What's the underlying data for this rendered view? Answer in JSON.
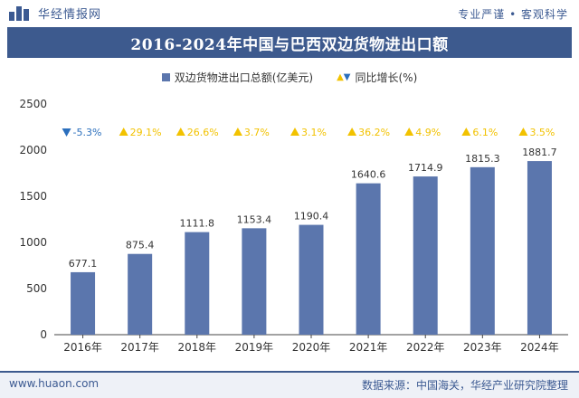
{
  "header": {
    "logo_text": "华经情报网",
    "slogan": "专业严谨 • 客观科学"
  },
  "footer": {
    "website": "www.huaon.com",
    "source": "数据来源：中国海关，华经产业研究院整理"
  },
  "colors": {
    "bar": "#5b76ad",
    "title_bg": "#3d5a8e",
    "up_arrow": "#f2c200",
    "down_arrow": "#2b6fbd"
  },
  "chart_data": {
    "type": "bar",
    "title": "2016-2024年中国与巴西双边货物进出口额",
    "categories": [
      "2016年",
      "2017年",
      "2018年",
      "2019年",
      "2020年",
      "2021年",
      "2022年",
      "2023年",
      "2024年"
    ],
    "series": [
      {
        "name": "双边货物进出口总额(亿美元)",
        "values": [
          677.1,
          875.4,
          1111.8,
          1153.4,
          1190.4,
          1640.6,
          1714.9,
          1815.3,
          1881.7
        ],
        "labels": [
          "677.1",
          "875.4",
          "1111.8",
          "1153.4",
          "1190.4",
          "1640.6",
          "1714.9",
          "1815.3",
          "1881.7"
        ]
      },
      {
        "name": "同比增长(%)",
        "values": [
          -5.3,
          29.1,
          26.6,
          3.7,
          3.1,
          36.2,
          4.9,
          6.1,
          3.5
        ],
        "labels": [
          "-5.3%",
          "29.1%",
          "26.6%",
          "3.7%",
          "3.1%",
          "36.2%",
          "4.9%",
          "6.1%",
          "3.5%"
        ]
      }
    ],
    "yticks": [
      "0",
      "500",
      "1000",
      "1500",
      "2000",
      "2500"
    ],
    "ylim": [
      0,
      2500
    ],
    "legend_position": "top-center",
    "grid": false
  }
}
